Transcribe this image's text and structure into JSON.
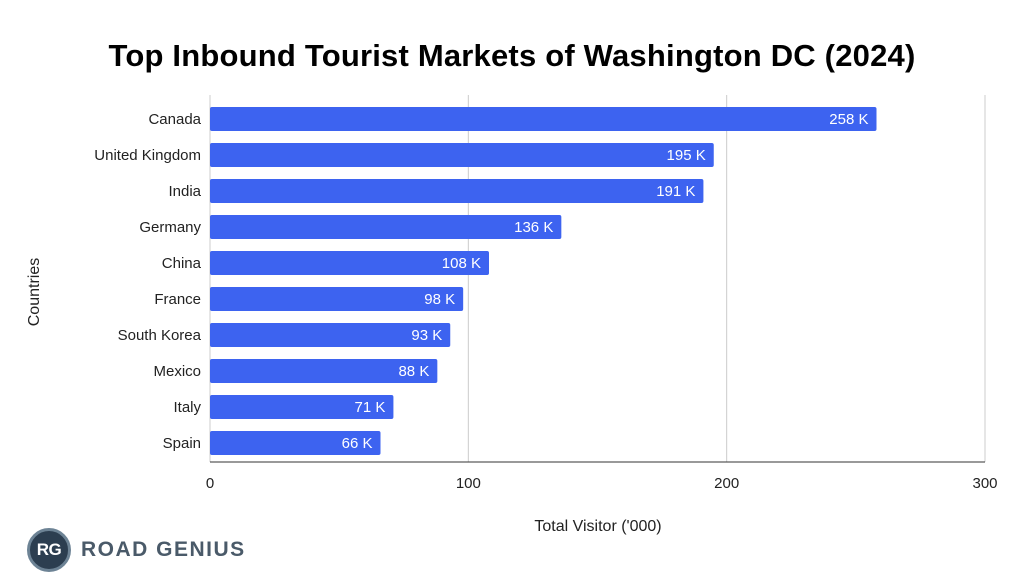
{
  "chart_data": {
    "type": "bar",
    "orientation": "horizontal",
    "title": "Top Inbound Tourist Markets of Washington DC (2024)",
    "xlabel": "Total Visitor ('000)",
    "ylabel": "Countries",
    "categories": [
      "Canada",
      "United Kingdom",
      "India",
      "Germany",
      "China",
      "France",
      "South Korea",
      "Mexico",
      "Italy",
      "Spain"
    ],
    "values": [
      258,
      195,
      191,
      136,
      108,
      98,
      93,
      88,
      71,
      66
    ],
    "data_labels": [
      "258 K",
      "195 K",
      "191 K",
      "136 K",
      "108 K",
      "98 K",
      "93 K",
      "88 K",
      "71 K",
      "66 K"
    ],
    "xlim": [
      0,
      300
    ],
    "xticks": [
      0,
      100,
      200,
      300
    ],
    "xtick_labels": [
      "0",
      "100",
      "200",
      "300"
    ],
    "bar_color": "#3d63f0",
    "grid": true
  },
  "brand": {
    "badge": "RG",
    "name": "ROAD GENIUS"
  }
}
